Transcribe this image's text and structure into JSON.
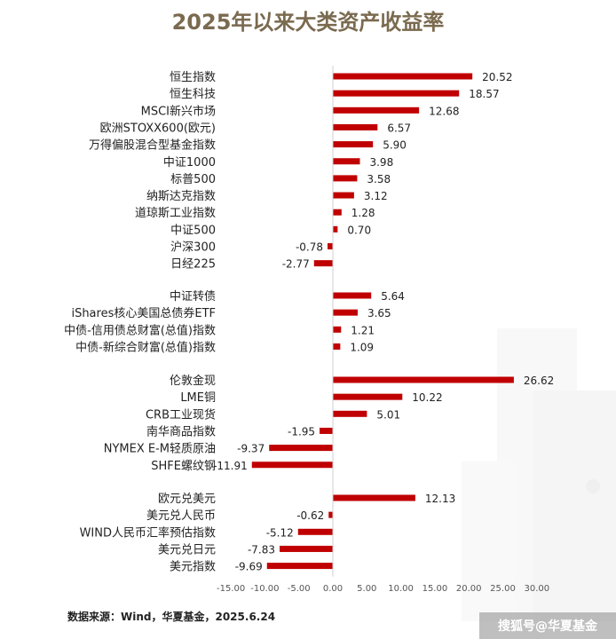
{
  "chart_data": {
    "type": "bar",
    "orientation": "horizontal",
    "title": "2025年以来大类资产收益率",
    "groups": [
      {
        "categories": [
          "恒生指数",
          "恒生科技",
          "MSCI新兴市场",
          "欧洲STOXX600(欧元)",
          "万得偏股混合型基金指数",
          "中证1000",
          "标普500",
          "纳斯达克指数",
          "道琼斯工业指数",
          "中证500",
          "沪深300",
          "日经225"
        ],
        "values": [
          20.52,
          18.57,
          12.68,
          6.57,
          5.9,
          3.98,
          3.58,
          3.12,
          1.28,
          0.7,
          -0.78,
          -2.77
        ]
      },
      {
        "categories": [
          "中证转债",
          "iShares核心美国总债券ETF",
          "中债-信用债总财富(总值)指数",
          "中债-新综合财富(总值)指数"
        ],
        "values": [
          5.64,
          3.65,
          1.21,
          1.09
        ]
      },
      {
        "categories": [
          "伦敦金现",
          "LME铜",
          "CRB工业现货",
          "南华商品指数",
          "NYMEX E-M轻质原油",
          "SHFE螺纹钢"
        ],
        "values": [
          26.62,
          10.22,
          5.01,
          -1.95,
          -9.37,
          -11.91
        ]
      },
      {
        "categories": [
          "欧元兑美元",
          "美元兑人民币",
          "WIND人民币汇率预估指数",
          "美元兑日元",
          "美元指数"
        ],
        "values": [
          12.13,
          -0.62,
          -5.12,
          -7.83,
          -9.69
        ]
      }
    ],
    "xlim": [
      -15,
      30
    ],
    "xticks": [
      "-15.00",
      "-10.00",
      "-5.00",
      "0.00",
      "5.00",
      "10.00",
      "15.00",
      "20.00",
      "25.00",
      "30.00"
    ],
    "bar_color": "#c00000",
    "grid": false,
    "legend": "none"
  },
  "source_note": "数据来源：Wind，华夏基金，2025.6.24",
  "watermark": "搜狐号@华夏基金"
}
